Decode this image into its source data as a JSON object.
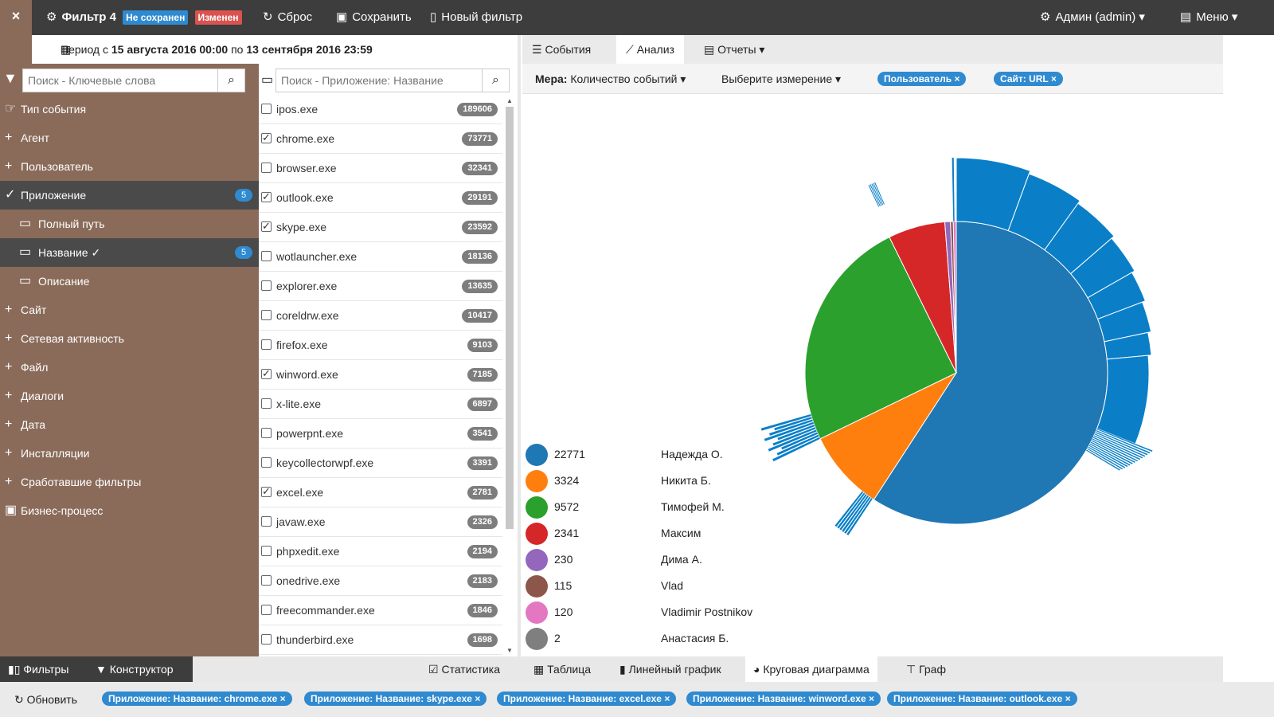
{
  "topbar": {
    "close": "×",
    "filter_title": "Фильтр 4",
    "badge_unsaved": "Не сохранен",
    "badge_changed": "Изменен",
    "reset": "Сброс",
    "save": "Сохранить",
    "new_filter": "Новый фильтр",
    "user": "Админ (admin)",
    "menu": "Меню"
  },
  "period": {
    "prefix": "Период с ",
    "from": "15 августа 2016 00:00",
    "mid": " по ",
    "to": "13 сентября 2016 23:59"
  },
  "search_keywords": {
    "placeholder": "Поиск - Ключевые слова"
  },
  "search_app": {
    "placeholder": "Поиск - Приложение: Название"
  },
  "nav": [
    {
      "label": "Тип события",
      "pre": "☞"
    },
    {
      "label": "Агент",
      "pre": "+"
    },
    {
      "label": "Пользователь",
      "pre": "+"
    },
    {
      "label": "Приложение",
      "pre": "✓",
      "count": "5"
    },
    {
      "label": "Полный путь",
      "pre": "▭"
    },
    {
      "label": "Название ✓",
      "pre": "▭",
      "count": "5"
    },
    {
      "label": "Описание",
      "pre": "▭"
    },
    {
      "label": "Сайт",
      "pre": "+"
    },
    {
      "label": "Сетевая активность",
      "pre": "+"
    },
    {
      "label": "Файл",
      "pre": "+"
    },
    {
      "label": "Диалоги",
      "pre": "+"
    },
    {
      "label": "Дата",
      "pre": "+"
    },
    {
      "label": "Инсталляции",
      "pre": "+"
    },
    {
      "label": "Сработавшие фильтры",
      "pre": "+"
    },
    {
      "label": "Бизнес-процесс",
      "pre": "▣"
    }
  ],
  "apps": [
    {
      "name": "ipos.exe",
      "count": "189606",
      "checked": false
    },
    {
      "name": "chrome.exe",
      "count": "73771",
      "checked": true
    },
    {
      "name": "browser.exe",
      "count": "32341",
      "checked": false
    },
    {
      "name": "outlook.exe",
      "count": "29191",
      "checked": true
    },
    {
      "name": "skype.exe",
      "count": "23592",
      "checked": true
    },
    {
      "name": "wotlauncher.exe",
      "count": "18136",
      "checked": false
    },
    {
      "name": "explorer.exe",
      "count": "13635",
      "checked": false
    },
    {
      "name": "coreldrw.exe",
      "count": "10417",
      "checked": false
    },
    {
      "name": "firefox.exe",
      "count": "9103",
      "checked": false
    },
    {
      "name": "winword.exe",
      "count": "7185",
      "checked": true
    },
    {
      "name": "x-lite.exe",
      "count": "6897",
      "checked": false
    },
    {
      "name": "powerpnt.exe",
      "count": "3541",
      "checked": false
    },
    {
      "name": "keycollectorwpf.exe",
      "count": "3391",
      "checked": false
    },
    {
      "name": "excel.exe",
      "count": "2781",
      "checked": true
    },
    {
      "name": "javaw.exe",
      "count": "2326",
      "checked": false
    },
    {
      "name": "phpxedit.exe",
      "count": "2194",
      "checked": false
    },
    {
      "name": "onedrive.exe",
      "count": "2183",
      "checked": false
    },
    {
      "name": "freecommander.exe",
      "count": "1846",
      "checked": false
    },
    {
      "name": "thunderbird.exe",
      "count": "1698",
      "checked": false
    }
  ],
  "tabs": {
    "events": "События",
    "analysis": "Анализ",
    "reports": "Отчеты"
  },
  "measure": {
    "label": "Мера:",
    "value": "Количество событий",
    "dimension": "Выберите измерение",
    "chip_user": "Пользователь",
    "chip_site": "Сайт: URL"
  },
  "chart_data": {
    "type": "pie",
    "values": [
      22771,
      3324,
      9572,
      2341,
      230,
      115,
      120,
      2
    ],
    "labels": [
      "Надежда О.",
      "Никита Б.",
      "Тимофей М.",
      "Максим",
      "Дима А.",
      "Vlad",
      "Vladimir Postnikov",
      "Анастасия Б."
    ],
    "colors": [
      "#1f77b4",
      "#ff7f0e",
      "#2ca02c",
      "#d62728",
      "#9467bd",
      "#8c564b",
      "#e377c2",
      "#7f7f7f"
    ]
  },
  "legend": [
    {
      "value": "22771",
      "name": "Надежда О.",
      "color": "#1f77b4"
    },
    {
      "value": "3324",
      "name": "Никита Б.",
      "color": "#ff7f0e"
    },
    {
      "value": "9572",
      "name": "Тимофей М.",
      "color": "#2ca02c"
    },
    {
      "value": "2341",
      "name": "Максим",
      "color": "#d62728"
    },
    {
      "value": "230",
      "name": "Дима А.",
      "color": "#9467bd"
    },
    {
      "value": "115",
      "name": "Vlad",
      "color": "#8c564b"
    },
    {
      "value": "120",
      "name": "Vladimir Postnikov",
      "color": "#e377c2"
    },
    {
      "value": "2",
      "name": "Анастасия Б.",
      "color": "#7f7f7f"
    }
  ],
  "bottom_tabs": {
    "filters": "Фильтры",
    "constructor": "Конструктор",
    "statistics": "Статистика",
    "table": "Таблица",
    "line_chart": "Линейный график",
    "pie_chart": "Круговая диаграмма",
    "graph": "Граф"
  },
  "footer": {
    "refresh": "Обновить",
    "chips": [
      "Приложение: Название: chrome.exe",
      "Приложение: Название: skype.exe",
      "Приложение: Название: excel.exe",
      "Приложение: Название: winword.exe",
      "Приложение: Название: outlook.exe"
    ]
  }
}
